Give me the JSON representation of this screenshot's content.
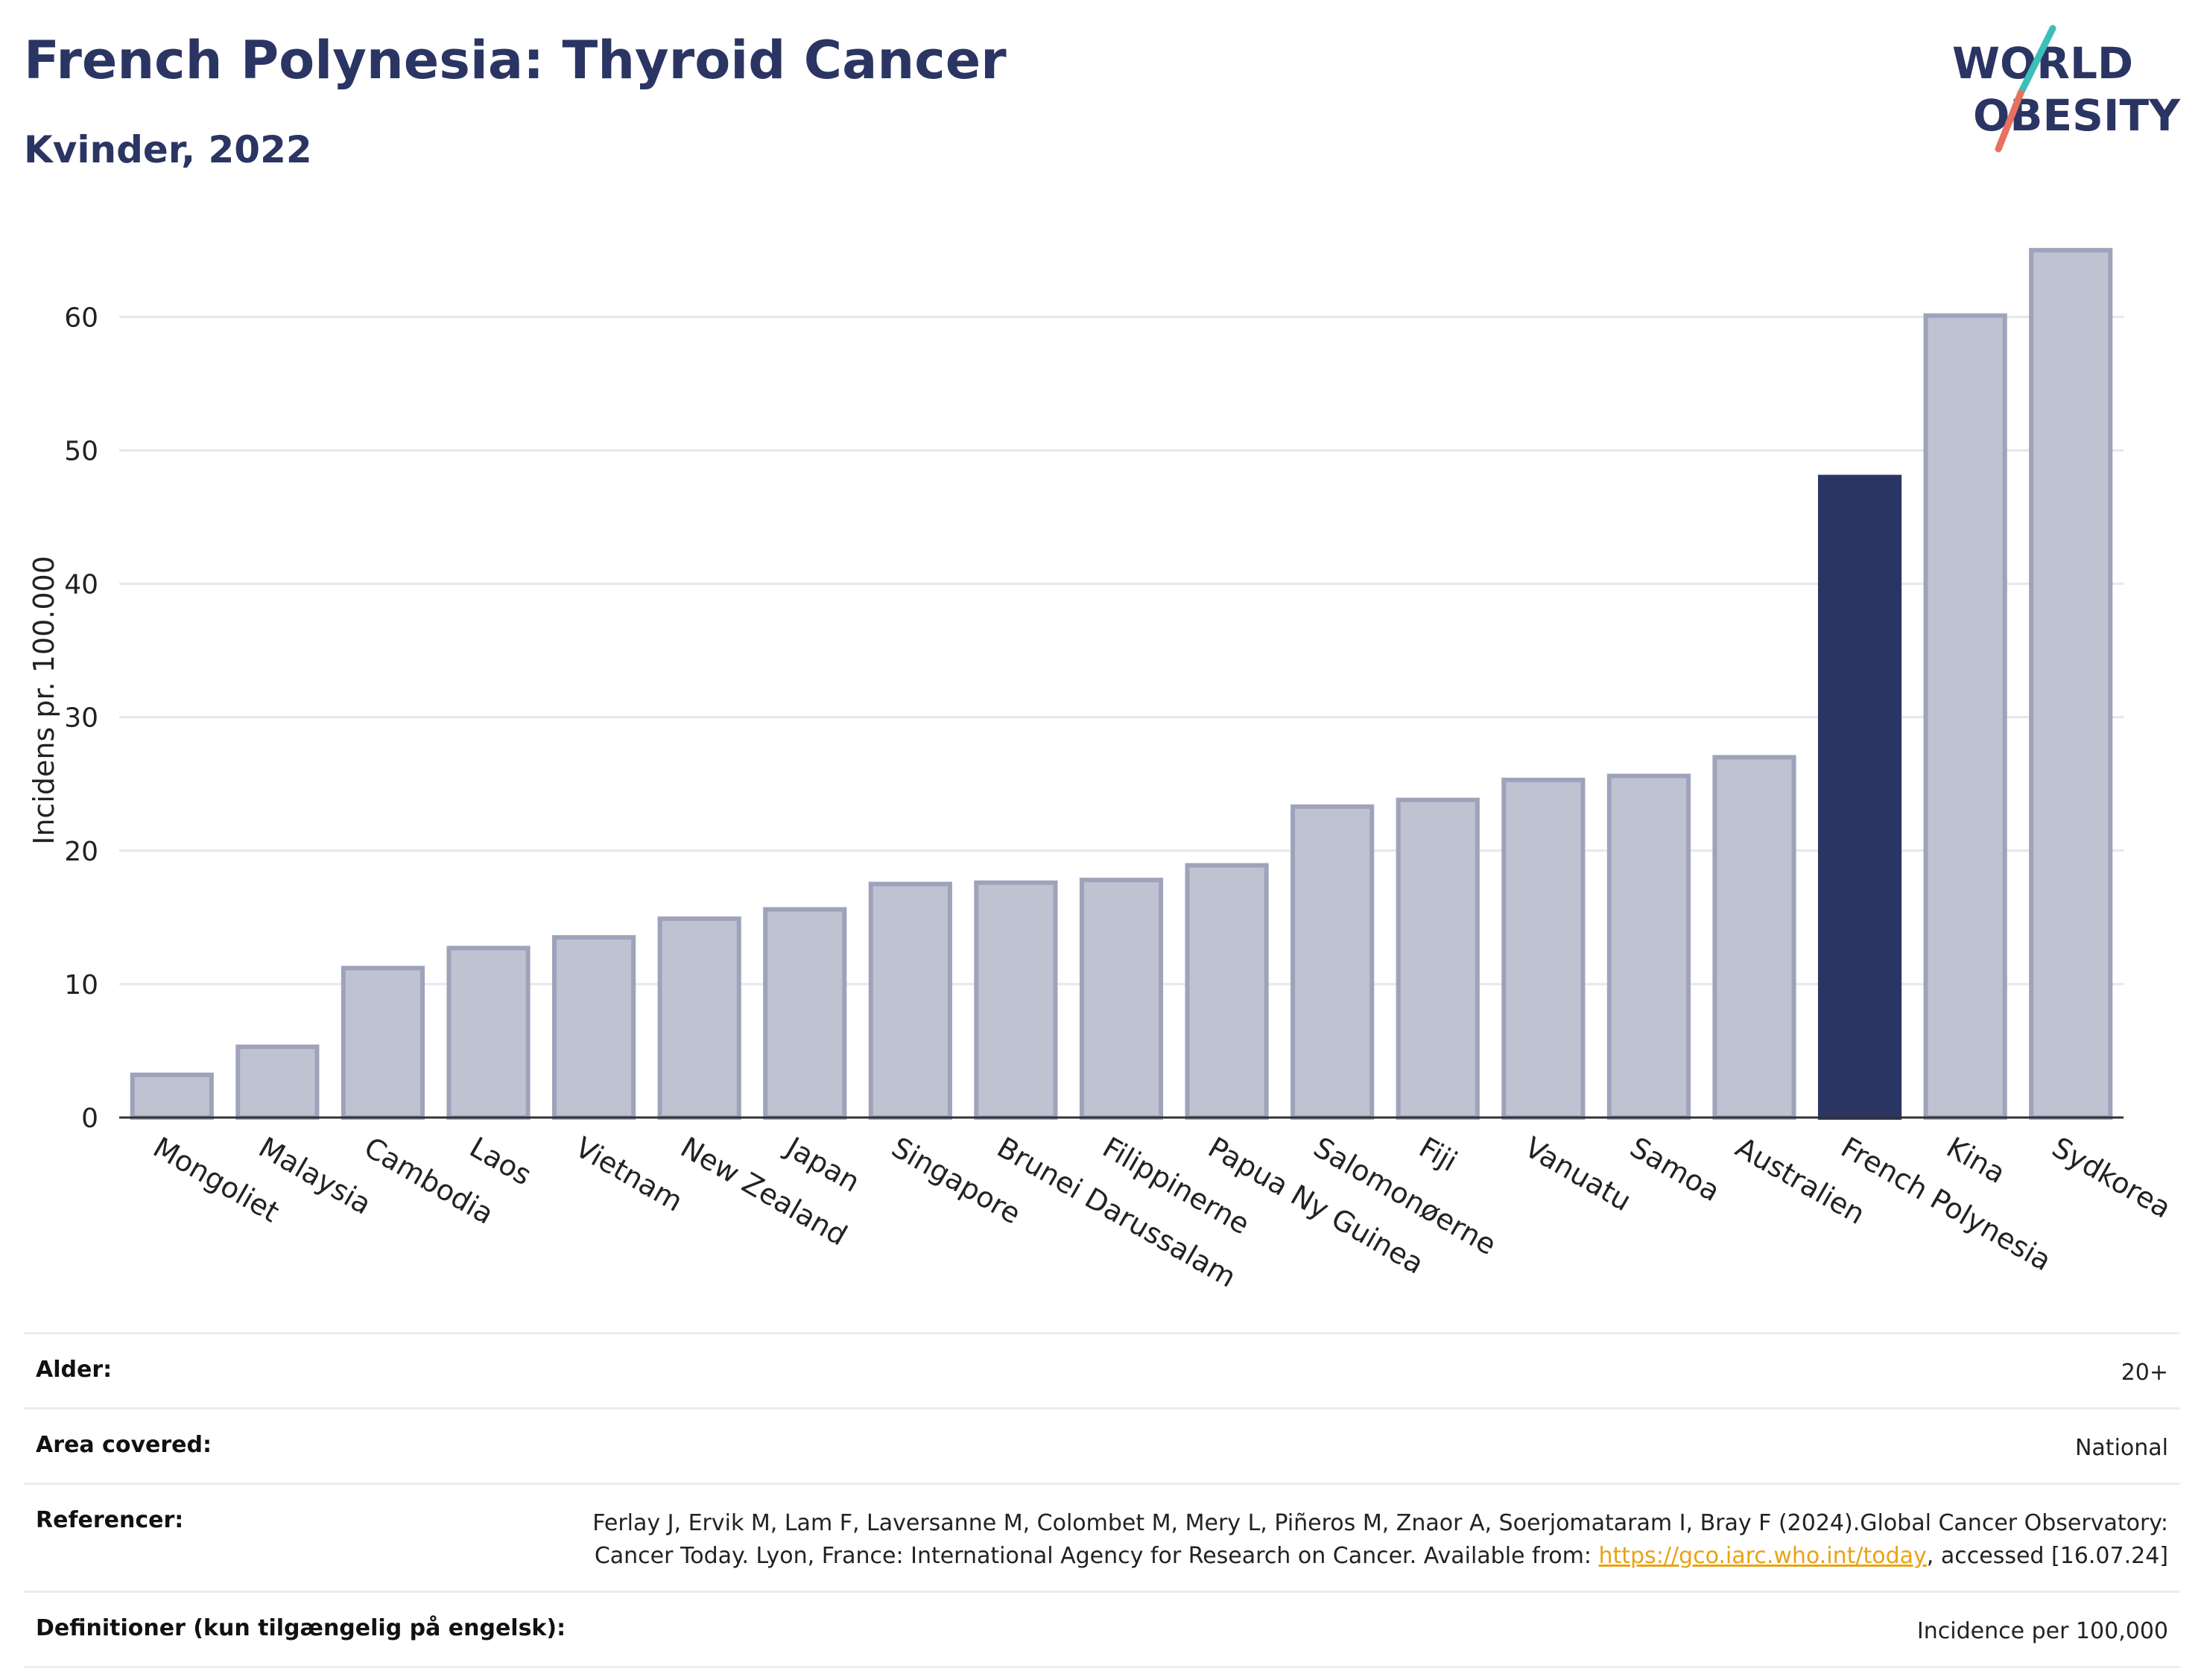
{
  "header": {
    "title": "French Polynesia: Thyroid Cancer",
    "subtitle": "Kvinder, 2022",
    "logo_line1": "WORLD",
    "logo_line2": "OBESITY"
  },
  "colors": {
    "bar": "#bfc2d1",
    "bar_stroke": "#9ea3bb",
    "highlight": "#2b3563",
    "grid": "#e6e6ee",
    "logo_teal": "#3bbfb8",
    "logo_coral": "#e8705f"
  },
  "chart_data": {
    "type": "bar",
    "ylabel": "Incidens pr. 100.000",
    "ylim": [
      0,
      67
    ],
    "yticks": [
      0,
      10,
      20,
      30,
      40,
      50,
      60
    ],
    "grid": true,
    "highlight": "French Polynesia",
    "categories": [
      "Mongoliet",
      "Malaysia",
      "Cambodia",
      "Laos",
      "Vietnam",
      "New Zealand",
      "Japan",
      "Singapore",
      "Brunei Darussalam",
      "Filippinerne",
      "Papua Ny Guinea",
      "Salomonøerne",
      "Fiji",
      "Vanuatu",
      "Samoa",
      "Australien",
      "French Polynesia",
      "Kina",
      "Sydkorea"
    ],
    "values": [
      3.2,
      5.3,
      11.2,
      12.7,
      13.5,
      14.9,
      15.6,
      17.5,
      17.6,
      17.8,
      18.9,
      23.3,
      23.8,
      25.3,
      25.6,
      27.0,
      48.0,
      60.1,
      65.0
    ]
  },
  "meta": {
    "rows": [
      {
        "label": "Alder:",
        "value": "20+"
      },
      {
        "label": "Area covered:",
        "value": "National"
      },
      {
        "label": "Referencer:",
        "value_pre": "Ferlay J, Ervik M, Lam F, Laversanne M, Colombet M, Mery L, Piñeros M, Znaor A, Soerjomataram I, Bray F (2024).Global Cancer Observatory: Cancer Today. Lyon, France: International Agency for Research on Cancer. Available from: ",
        "link": "https://gco.iarc.who.int/today",
        "value_post": ", accessed [16.07.24]"
      },
      {
        "label": "Definitioner (kun tilgængelig på engelsk):",
        "value": "Incidence per 100,000"
      }
    ]
  }
}
